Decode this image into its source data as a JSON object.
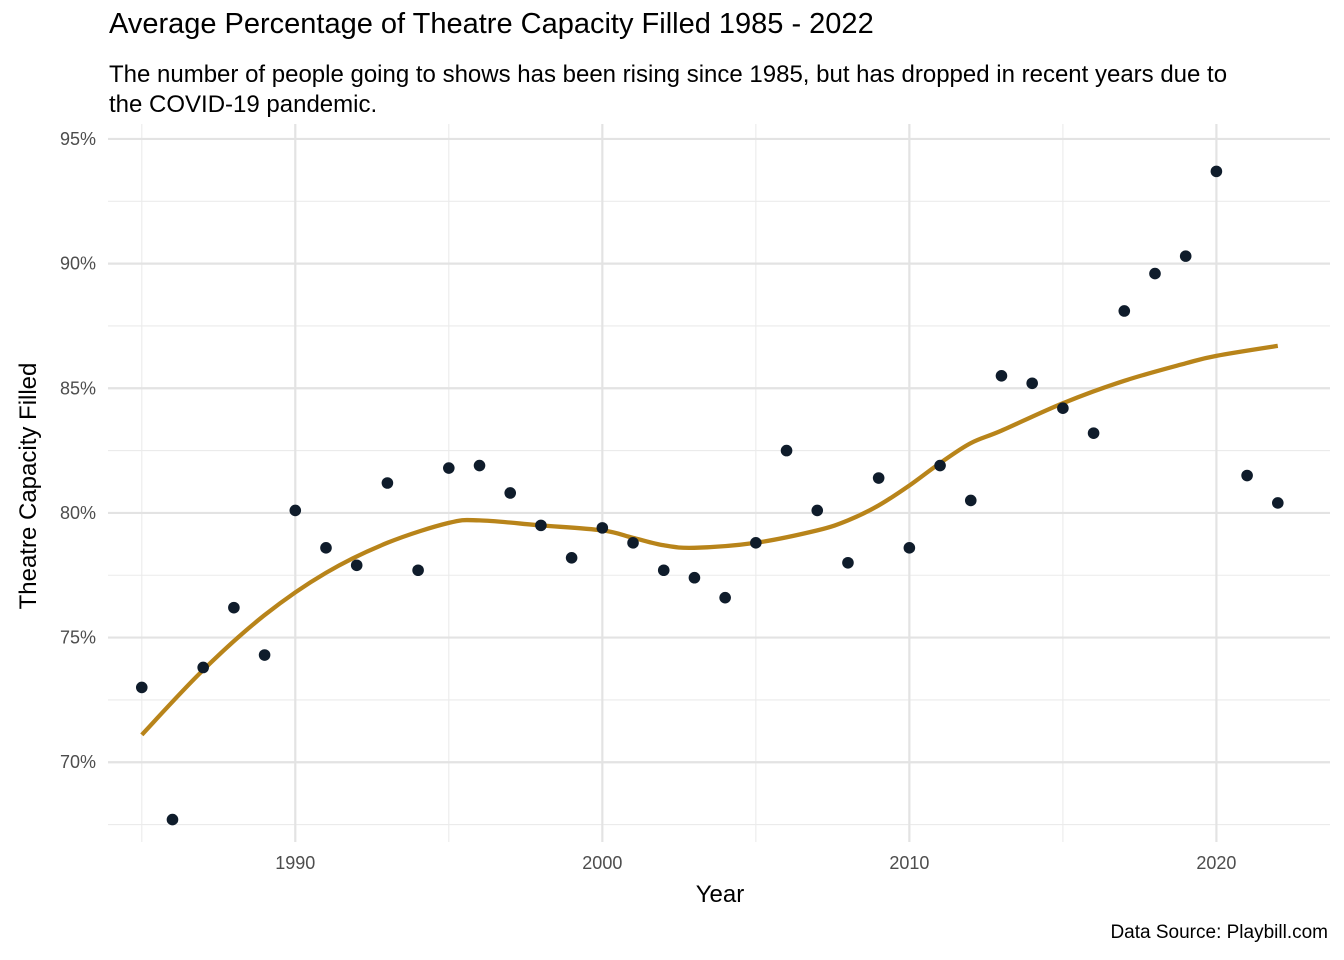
{
  "chart_data": {
    "type": "scatter",
    "title": "Average Percentage of Theatre Capacity Filled 1985 - 2022",
    "subtitle": "The number of people going to shows has been rising since 1985, but has dropped in recent years due to the COVID-19 pandemic.",
    "caption": "Data Source: Playbill.com",
    "xlabel": "Year",
    "ylabel": "Theatre Capacity Filled",
    "xlim": [
      1983.9,
      2023.7
    ],
    "ylim": [
      66.8,
      95.6
    ],
    "x_ticks": [
      1990,
      2000,
      2010,
      2020
    ],
    "x_tick_labels": [
      "1990",
      "2000",
      "2010",
      "2020"
    ],
    "y_ticks": [
      70,
      75,
      80,
      85,
      90,
      95
    ],
    "y_tick_labels": [
      "70%",
      "75%",
      "80%",
      "85%",
      "90%",
      "95%"
    ],
    "grid": true,
    "legend": "none",
    "series": [
      {
        "type": "scatter",
        "color": "#0f1c2b",
        "points": [
          [
            1985,
            73.0
          ],
          [
            1986,
            67.7
          ],
          [
            1987,
            73.8
          ],
          [
            1988,
            76.2
          ],
          [
            1989,
            74.3
          ],
          [
            1990,
            80.1
          ],
          [
            1991,
            78.6
          ],
          [
            1992,
            77.9
          ],
          [
            1993,
            81.2
          ],
          [
            1994,
            77.7
          ],
          [
            1995,
            81.8
          ],
          [
            1996,
            81.9
          ],
          [
            1997,
            80.8
          ],
          [
            1998,
            79.5
          ],
          [
            1999,
            78.2
          ],
          [
            2000,
            79.4
          ],
          [
            2001,
            78.8
          ],
          [
            2002,
            77.7
          ],
          [
            2003,
            77.4
          ],
          [
            2004,
            76.6
          ],
          [
            2005,
            78.8
          ],
          [
            2006,
            82.5
          ],
          [
            2007,
            80.1
          ],
          [
            2008,
            78.0
          ],
          [
            2009,
            81.4
          ],
          [
            2010,
            78.6
          ],
          [
            2011,
            81.9
          ],
          [
            2012,
            80.5
          ],
          [
            2013,
            85.5
          ],
          [
            2014,
            85.2
          ],
          [
            2015,
            84.2
          ],
          [
            2016,
            83.2
          ],
          [
            2017,
            88.1
          ],
          [
            2018,
            89.6
          ],
          [
            2019,
            90.3
          ],
          [
            2020,
            93.7
          ],
          [
            2021,
            81.5
          ],
          [
            2022,
            80.4
          ]
        ]
      },
      {
        "type": "line",
        "color": "#b8841a",
        "points": [
          [
            1985,
            71.1
          ],
          [
            1987,
            73.7
          ],
          [
            1989,
            75.9
          ],
          [
            1991,
            77.6
          ],
          [
            1993,
            78.8
          ],
          [
            1995,
            79.6
          ],
          [
            1996,
            79.7
          ],
          [
            1998,
            79.5
          ],
          [
            2000,
            79.3
          ],
          [
            2001,
            79.0
          ],
          [
            2002,
            78.7
          ],
          [
            2003,
            78.6
          ],
          [
            2005,
            78.8
          ],
          [
            2007,
            79.3
          ],
          [
            2008,
            79.7
          ],
          [
            2009,
            80.3
          ],
          [
            2010,
            81.1
          ],
          [
            2011,
            82.0
          ],
          [
            2012,
            82.8
          ],
          [
            2013,
            83.3
          ],
          [
            2015,
            84.4
          ],
          [
            2017,
            85.3
          ],
          [
            2019,
            86.0
          ],
          [
            2020,
            86.3
          ],
          [
            2022,
            86.7
          ]
        ]
      }
    ]
  }
}
